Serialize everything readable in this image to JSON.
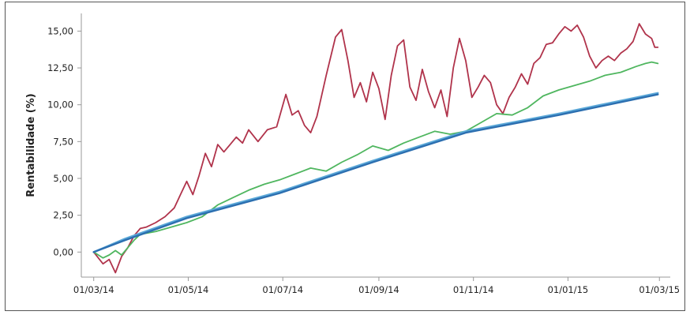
{
  "chart_data": {
    "type": "line",
    "ylabel": "Rentabilidade (%)",
    "xlabel": "",
    "ylim": [
      -1.7,
      16.2
    ],
    "y_ticks": [
      "0,00",
      "2,50",
      "5,00",
      "7,50",
      "10,00",
      "12,50",
      "15,00"
    ],
    "x_tick_labels": [
      "01/03/14",
      "01/05/14",
      "01/07/14",
      "01/09/14",
      "01/11/14",
      "01/01/15",
      "01/03/15"
    ],
    "x_range_days": [
      -8,
      372
    ],
    "grid": false,
    "legend": "none",
    "series": [
      {
        "color": "#b0334b",
        "x_days": [
          0,
          6,
          10,
          14,
          18,
          22,
          26,
          30,
          34,
          40,
          46,
          52,
          56,
          60,
          64,
          68,
          72,
          76,
          80,
          84,
          88,
          92,
          96,
          100,
          106,
          112,
          118,
          124,
          128,
          132,
          136,
          140,
          144,
          150,
          156,
          160,
          164,
          168,
          172,
          176,
          180,
          184,
          188,
          192,
          196,
          200,
          204,
          208,
          212,
          216,
          220,
          224,
          228,
          232,
          236,
          240,
          244,
          248,
          252,
          256,
          260,
          264,
          268,
          272,
          276,
          280,
          284,
          288,
          292,
          296,
          300,
          304,
          308,
          312,
          316,
          320,
          324,
          328,
          332,
          336,
          340,
          344,
          348,
          352,
          356,
          360,
          362,
          364
        ],
        "values": [
          0.0,
          -0.8,
          -0.5,
          -1.4,
          -0.3,
          0.3,
          1.1,
          1.6,
          1.7,
          2.0,
          2.4,
          3.0,
          3.9,
          4.8,
          3.9,
          5.2,
          6.7,
          5.8,
          7.3,
          6.8,
          7.3,
          7.8,
          7.4,
          8.3,
          7.5,
          8.3,
          8.5,
          10.7,
          9.3,
          9.6,
          8.6,
          8.1,
          9.2,
          12.0,
          14.6,
          15.1,
          13.0,
          10.5,
          11.5,
          10.2,
          12.2,
          11.1,
          9.0,
          12.0,
          14.0,
          14.4,
          11.2,
          10.3,
          12.4,
          10.9,
          9.8,
          11.0,
          9.2,
          12.5,
          14.5,
          13.0,
          10.5,
          11.2,
          12.0,
          11.5,
          10.0,
          9.4,
          10.5,
          11.2,
          12.1,
          11.4,
          12.8,
          13.2,
          14.1,
          14.2,
          14.8,
          15.3,
          15.0,
          15.4,
          14.6,
          13.3,
          12.5,
          13.0,
          13.3,
          13.0,
          13.5,
          13.8,
          14.3,
          15.5,
          14.8,
          14.5,
          13.9,
          13.9
        ]
      },
      {
        "color": "#4fb65f",
        "x_days": [
          0,
          6,
          10,
          14,
          18,
          22,
          26,
          30,
          40,
          50,
          60,
          70,
          80,
          90,
          100,
          110,
          120,
          130,
          140,
          150,
          160,
          170,
          180,
          190,
          200,
          210,
          220,
          230,
          240,
          250,
          260,
          270,
          280,
          290,
          300,
          310,
          320,
          330,
          340,
          350,
          356,
          360,
          364
        ],
        "values": [
          0.0,
          -0.4,
          -0.2,
          0.1,
          -0.2,
          0.3,
          0.8,
          1.2,
          1.4,
          1.7,
          2.0,
          2.4,
          3.2,
          3.7,
          4.2,
          4.6,
          4.9,
          5.3,
          5.7,
          5.5,
          6.1,
          6.6,
          7.2,
          6.9,
          7.4,
          7.8,
          8.2,
          8.0,
          8.2,
          8.8,
          9.4,
          9.3,
          9.8,
          10.6,
          11.0,
          11.3,
          11.6,
          12.0,
          12.2,
          12.6,
          12.8,
          12.9,
          12.8
        ]
      },
      {
        "color": "#5aa8d8",
        "x_days": [
          0,
          20,
          60,
          120,
          180,
          240,
          300,
          364
        ],
        "values": [
          0.0,
          0.9,
          2.4,
          4.1,
          6.2,
          8.2,
          9.4,
          10.8
        ]
      },
      {
        "color": "#2c6fb0",
        "x_days": [
          0,
          20,
          60,
          120,
          180,
          240,
          300,
          364
        ],
        "values": [
          0.0,
          0.8,
          2.3,
          4.0,
          6.1,
          8.1,
          9.3,
          10.7
        ]
      }
    ]
  }
}
